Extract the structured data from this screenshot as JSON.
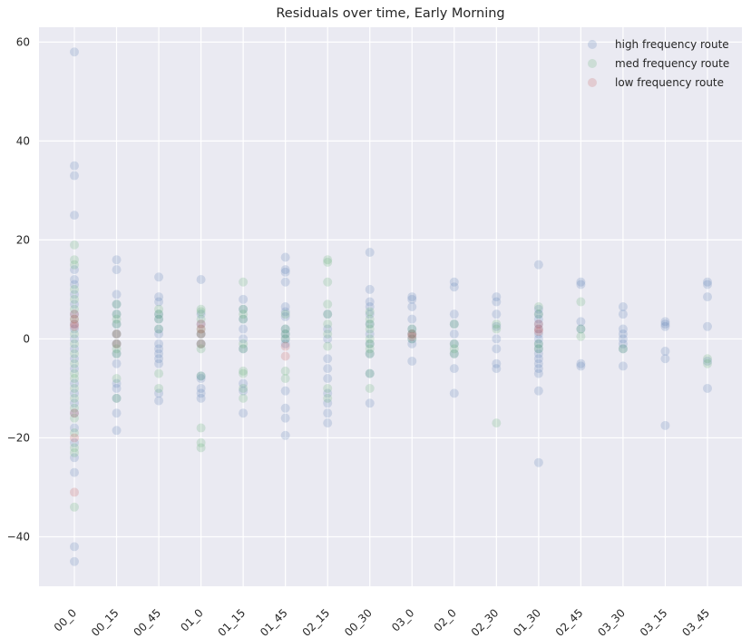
{
  "chart_data": {
    "type": "scatter",
    "title": "Residuals over time, Early Morning",
    "xlabel": "",
    "ylabel": "",
    "categories": [
      "00_0",
      "00_15",
      "00_45",
      "01_0",
      "01_15",
      "01_45",
      "02_15",
      "00_30",
      "03_0",
      "02_0",
      "02_30",
      "01_30",
      "02_45",
      "03_30",
      "03_15",
      "03_45"
    ],
    "ylim": [
      -50,
      63
    ],
    "yticks": [
      -40,
      -20,
      0,
      20,
      40,
      60
    ],
    "grid": true,
    "legend_position": "top-right",
    "series": [
      {
        "name": "high frequency route",
        "color": "#4c72b0",
        "points": [
          [
            "00_0",
            58
          ],
          [
            "00_0",
            35
          ],
          [
            "00_0",
            33
          ],
          [
            "00_0",
            25
          ],
          [
            "00_0",
            14
          ],
          [
            "00_0",
            12
          ],
          [
            "00_0",
            11
          ],
          [
            "00_0",
            9
          ],
          [
            "00_0",
            7
          ],
          [
            "00_0",
            5
          ],
          [
            "00_0",
            3
          ],
          [
            "00_0",
            2
          ],
          [
            "00_0",
            0
          ],
          [
            "00_0",
            -2
          ],
          [
            "00_0",
            -4
          ],
          [
            "00_0",
            -6
          ],
          [
            "00_0",
            -9
          ],
          [
            "00_0",
            -11
          ],
          [
            "00_0",
            -13
          ],
          [
            "00_0",
            -15
          ],
          [
            "00_0",
            -18
          ],
          [
            "00_0",
            -21
          ],
          [
            "00_0",
            -24
          ],
          [
            "00_0",
            -27
          ],
          [
            "00_0",
            -42
          ],
          [
            "00_0",
            -45
          ],
          [
            "00_15",
            16
          ],
          [
            "00_15",
            14
          ],
          [
            "00_15",
            9
          ],
          [
            "00_15",
            7
          ],
          [
            "00_15",
            5
          ],
          [
            "00_15",
            3
          ],
          [
            "00_15",
            1
          ],
          [
            "00_15",
            -1
          ],
          [
            "00_15",
            -3
          ],
          [
            "00_15",
            -5
          ],
          [
            "00_15",
            -9
          ],
          [
            "00_15",
            -10
          ],
          [
            "00_15",
            -12
          ],
          [
            "00_15",
            -15
          ],
          [
            "00_15",
            -18.5
          ],
          [
            "00_45",
            12.5
          ],
          [
            "00_45",
            8.5
          ],
          [
            "00_45",
            7.5
          ],
          [
            "00_45",
            5
          ],
          [
            "00_45",
            4
          ],
          [
            "00_45",
            2
          ],
          [
            "00_45",
            1
          ],
          [
            "00_45",
            -1
          ],
          [
            "00_45",
            -2
          ],
          [
            "00_45",
            -3
          ],
          [
            "00_45",
            -4
          ],
          [
            "00_45",
            -5
          ],
          [
            "00_45",
            -11
          ],
          [
            "00_45",
            -12.5
          ],
          [
            "01_0",
            12
          ],
          [
            "01_0",
            5
          ],
          [
            "01_0",
            3
          ],
          [
            "01_0",
            1
          ],
          [
            "01_0",
            -1
          ],
          [
            "01_0",
            -7.5
          ],
          [
            "01_0",
            -8
          ],
          [
            "01_0",
            -10
          ],
          [
            "01_0",
            -11
          ],
          [
            "01_0",
            -12
          ],
          [
            "01_15",
            8
          ],
          [
            "01_15",
            6
          ],
          [
            "01_15",
            4
          ],
          [
            "01_15",
            2
          ],
          [
            "01_15",
            0
          ],
          [
            "01_15",
            -2
          ],
          [
            "01_15",
            -9
          ],
          [
            "01_15",
            -10.5
          ],
          [
            "01_15",
            -15
          ],
          [
            "01_45",
            16.5
          ],
          [
            "01_45",
            14
          ],
          [
            "01_45",
            13.5
          ],
          [
            "01_45",
            11.5
          ],
          [
            "01_45",
            6.5
          ],
          [
            "01_45",
            5.5
          ],
          [
            "01_45",
            4.5
          ],
          [
            "01_45",
            2
          ],
          [
            "01_45",
            1
          ],
          [
            "01_45",
            0
          ],
          [
            "01_45",
            -1
          ],
          [
            "01_45",
            -10.5
          ],
          [
            "01_45",
            -14
          ],
          [
            "01_45",
            -16
          ],
          [
            "01_45",
            -19.5
          ],
          [
            "02_15",
            5
          ],
          [
            "02_15",
            2
          ],
          [
            "02_15",
            0
          ],
          [
            "02_15",
            -4
          ],
          [
            "02_15",
            -6
          ],
          [
            "02_15",
            -8
          ],
          [
            "02_15",
            -11
          ],
          [
            "02_15",
            -13
          ],
          [
            "02_15",
            -15
          ],
          [
            "02_15",
            -17
          ],
          [
            "00_30",
            17.5
          ],
          [
            "00_30",
            10
          ],
          [
            "00_30",
            7.5
          ],
          [
            "00_30",
            6.5
          ],
          [
            "00_30",
            5
          ],
          [
            "00_30",
            3
          ],
          [
            "00_30",
            1
          ],
          [
            "00_30",
            -1
          ],
          [
            "00_30",
            -3
          ],
          [
            "00_30",
            -7
          ],
          [
            "00_30",
            -13
          ],
          [
            "03_0",
            8.5
          ],
          [
            "03_0",
            8
          ],
          [
            "03_0",
            6.5
          ],
          [
            "03_0",
            4
          ],
          [
            "03_0",
            2
          ],
          [
            "03_0",
            1
          ],
          [
            "03_0",
            0
          ],
          [
            "03_0",
            -1
          ],
          [
            "03_0",
            -4.5
          ],
          [
            "02_0",
            11.5
          ],
          [
            "02_0",
            10.5
          ],
          [
            "02_0",
            5
          ],
          [
            "02_0",
            3
          ],
          [
            "02_0",
            1
          ],
          [
            "02_0",
            -1
          ],
          [
            "02_0",
            -3
          ],
          [
            "02_0",
            -6
          ],
          [
            "02_0",
            -11
          ],
          [
            "02_30",
            8.5
          ],
          [
            "02_30",
            7.5
          ],
          [
            "02_30",
            5
          ],
          [
            "02_30",
            2.5
          ],
          [
            "02_30",
            0
          ],
          [
            "02_30",
            -2
          ],
          [
            "02_30",
            -5
          ],
          [
            "02_30",
            -6
          ],
          [
            "01_30",
            15
          ],
          [
            "01_30",
            6
          ],
          [
            "01_30",
            5
          ],
          [
            "01_30",
            4
          ],
          [
            "01_30",
            3
          ],
          [
            "01_30",
            2
          ],
          [
            "01_30",
            1
          ],
          [
            "01_30",
            0
          ],
          [
            "01_30",
            -1
          ],
          [
            "01_30",
            -2
          ],
          [
            "01_30",
            -3
          ],
          [
            "01_30",
            -4
          ],
          [
            "01_30",
            -5
          ],
          [
            "01_30",
            -6
          ],
          [
            "01_30",
            -7
          ],
          [
            "01_30",
            -10.5
          ],
          [
            "01_30",
            -25
          ],
          [
            "02_45",
            11.5
          ],
          [
            "02_45",
            11
          ],
          [
            "02_45",
            3.5
          ],
          [
            "02_45",
            2
          ],
          [
            "02_45",
            -5
          ],
          [
            "02_45",
            -5.5
          ],
          [
            "03_30",
            6.5
          ],
          [
            "03_30",
            5
          ],
          [
            "03_30",
            2
          ],
          [
            "03_30",
            1
          ],
          [
            "03_30",
            0
          ],
          [
            "03_30",
            -1
          ],
          [
            "03_30",
            -2
          ],
          [
            "03_30",
            -5.5
          ],
          [
            "03_15",
            3.5
          ],
          [
            "03_15",
            3
          ],
          [
            "03_15",
            2.5
          ],
          [
            "03_15",
            -2.5
          ],
          [
            "03_15",
            -4
          ],
          [
            "03_15",
            -17.5
          ],
          [
            "03_45",
            11.5
          ],
          [
            "03_45",
            11
          ],
          [
            "03_45",
            8.5
          ],
          [
            "03_45",
            2.5
          ],
          [
            "03_45",
            -4.5
          ],
          [
            "03_45",
            -10
          ]
        ]
      },
      {
        "name": "med frequency route",
        "color": "#55a868",
        "points": [
          [
            "00_0",
            19
          ],
          [
            "00_0",
            16
          ],
          [
            "00_0",
            15
          ],
          [
            "00_0",
            10
          ],
          [
            "00_0",
            8
          ],
          [
            "00_0",
            6
          ],
          [
            "00_0",
            4
          ],
          [
            "00_0",
            1
          ],
          [
            "00_0",
            -1
          ],
          [
            "00_0",
            -3
          ],
          [
            "00_0",
            -5
          ],
          [
            "00_0",
            -7
          ],
          [
            "00_0",
            -8
          ],
          [
            "00_0",
            -10
          ],
          [
            "00_0",
            -12
          ],
          [
            "00_0",
            -14
          ],
          [
            "00_0",
            -16
          ],
          [
            "00_0",
            -19
          ],
          [
            "00_0",
            -22
          ],
          [
            "00_0",
            -23
          ],
          [
            "00_0",
            -34
          ],
          [
            "00_15",
            7
          ],
          [
            "00_15",
            5
          ],
          [
            "00_15",
            4
          ],
          [
            "00_15",
            3
          ],
          [
            "00_15",
            1
          ],
          [
            "00_15",
            -1
          ],
          [
            "00_15",
            -2
          ],
          [
            "00_15",
            -3
          ],
          [
            "00_15",
            -8
          ],
          [
            "00_15",
            -12
          ],
          [
            "00_45",
            6
          ],
          [
            "00_45",
            5
          ],
          [
            "00_45",
            4
          ],
          [
            "00_45",
            2
          ],
          [
            "00_45",
            -7
          ],
          [
            "00_45",
            -10
          ],
          [
            "01_0",
            6
          ],
          [
            "01_0",
            5.5
          ],
          [
            "01_0",
            4
          ],
          [
            "01_0",
            2
          ],
          [
            "01_0",
            1
          ],
          [
            "01_0",
            -1
          ],
          [
            "01_0",
            -2
          ],
          [
            "01_0",
            -7.5
          ],
          [
            "01_0",
            -18
          ],
          [
            "01_0",
            -21
          ],
          [
            "01_0",
            -22
          ],
          [
            "01_15",
            11.5
          ],
          [
            "01_15",
            6
          ],
          [
            "01_15",
            5
          ],
          [
            "01_15",
            4
          ],
          [
            "01_15",
            -1
          ],
          [
            "01_15",
            -2
          ],
          [
            "01_15",
            -6.5
          ],
          [
            "01_15",
            -7
          ],
          [
            "01_15",
            -10
          ],
          [
            "01_15",
            -12
          ],
          [
            "01_45",
            5
          ],
          [
            "01_45",
            2
          ],
          [
            "01_45",
            1
          ],
          [
            "01_45",
            0
          ],
          [
            "01_45",
            -6.5
          ],
          [
            "01_45",
            -8
          ],
          [
            "02_15",
            16
          ],
          [
            "02_15",
            15.5
          ],
          [
            "02_15",
            11.5
          ],
          [
            "02_15",
            7
          ],
          [
            "02_15",
            5
          ],
          [
            "02_15",
            3
          ],
          [
            "02_15",
            1
          ],
          [
            "02_15",
            -1.5
          ],
          [
            "02_15",
            -10
          ],
          [
            "02_15",
            -12
          ],
          [
            "00_30",
            5.5
          ],
          [
            "00_30",
            4
          ],
          [
            "00_30",
            3
          ],
          [
            "00_30",
            2
          ],
          [
            "00_30",
            0
          ],
          [
            "00_30",
            -1
          ],
          [
            "00_30",
            -2
          ],
          [
            "00_30",
            -3
          ],
          [
            "00_30",
            -7
          ],
          [
            "00_30",
            -10
          ],
          [
            "03_0",
            2
          ],
          [
            "03_0",
            1
          ],
          [
            "03_0",
            0
          ],
          [
            "02_0",
            3
          ],
          [
            "02_0",
            -1
          ],
          [
            "02_0",
            -2
          ],
          [
            "02_0",
            -3
          ],
          [
            "02_30",
            3
          ],
          [
            "02_30",
            2
          ],
          [
            "02_30",
            -17
          ],
          [
            "01_30",
            6.5
          ],
          [
            "01_30",
            5
          ],
          [
            "01_30",
            -1
          ],
          [
            "01_30",
            -2
          ],
          [
            "02_45",
            7.5
          ],
          [
            "02_45",
            2
          ],
          [
            "02_45",
            0.5
          ],
          [
            "03_30",
            -2
          ],
          [
            "03_45",
            -4
          ],
          [
            "03_45",
            -5
          ]
        ]
      },
      {
        "name": "low frequency route",
        "color": "#c44e52",
        "points": [
          [
            "00_0",
            5
          ],
          [
            "00_0",
            4
          ],
          [
            "00_0",
            3
          ],
          [
            "00_0",
            2.5
          ],
          [
            "00_0",
            -15
          ],
          [
            "00_0",
            -20
          ],
          [
            "00_0",
            -31
          ],
          [
            "00_15",
            1
          ],
          [
            "00_15",
            -1
          ],
          [
            "01_0",
            3
          ],
          [
            "01_0",
            2
          ],
          [
            "01_0",
            1
          ],
          [
            "01_0",
            -1
          ],
          [
            "01_45",
            -1.5
          ],
          [
            "01_45",
            -3.5
          ],
          [
            "03_0",
            1
          ],
          [
            "03_0",
            0.5
          ],
          [
            "01_30",
            3
          ],
          [
            "01_30",
            2
          ],
          [
            "01_30",
            1.5
          ]
        ]
      }
    ]
  }
}
